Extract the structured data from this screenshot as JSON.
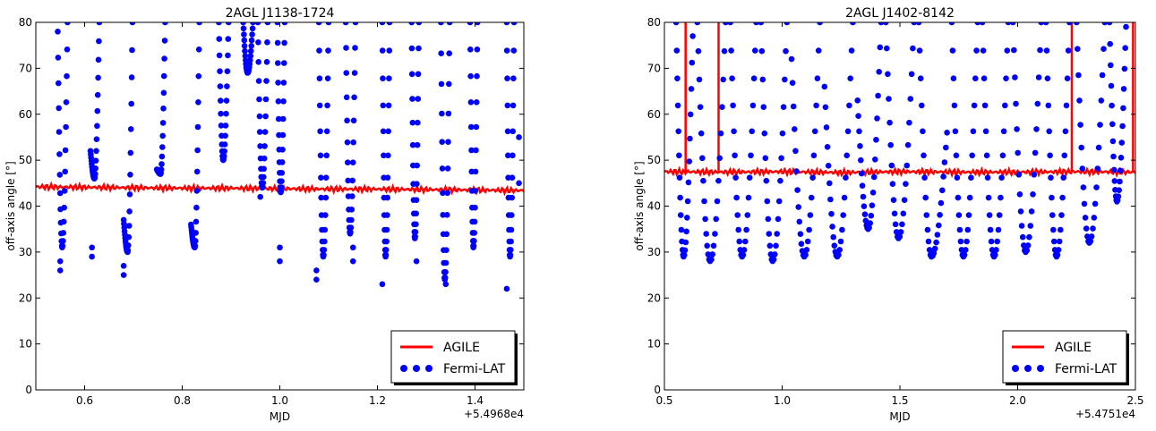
{
  "chart_data": [
    {
      "type": "line",
      "title": "2AGL J1138-1724",
      "xlabel": "MJD",
      "ylabel": "off-axis angle [°]",
      "x_offset_label": "+5.4968e4",
      "xlim": [
        0.5,
        1.5
      ],
      "ylim": [
        0,
        80
      ],
      "xticks": [
        0.6,
        0.8,
        1.0,
        1.2,
        1.4
      ],
      "xtick_labels": [
        "0.6",
        "0.8",
        "1.0",
        "1.2",
        "1.4"
      ],
      "yticks": [
        0,
        10,
        20,
        30,
        40,
        50,
        60,
        70,
        80
      ],
      "ytick_labels": [
        "0",
        "10",
        "20",
        "30",
        "40",
        "50",
        "60",
        "70",
        "80"
      ],
      "legend_position": "lower-right",
      "series": [
        {
          "name": "AGILE",
          "color": "#ff0000",
          "style": "line",
          "x": [
            0.5,
            0.6,
            0.7,
            0.8,
            0.9,
            1.0,
            1.1,
            1.2,
            1.3,
            1.4,
            1.5
          ],
          "y": [
            44.2,
            44.1,
            44.0,
            43.9,
            43.9,
            43.8,
            43.7,
            43.7,
            43.6,
            43.5,
            43.4
          ]
        },
        {
          "name": "Fermi-LAT",
          "color": "#0000ff",
          "style": "markers",
          "passes": [
            {
              "x_start": 0.545,
              "x_end": 0.565,
              "y_start": 78,
              "y_min": 31,
              "y_end": 80
            },
            {
              "x_start": 0.612,
              "x_end": 0.63,
              "y_start": 52,
              "y_min": 46,
              "y_end": 80
            },
            {
              "x_start": 0.68,
              "x_end": 0.698,
              "y_start": 37,
              "y_min": 30,
              "y_end": 80
            },
            {
              "x_start": 0.748,
              "x_end": 0.765,
              "y_start": 48,
              "y_min": 47,
              "y_end": 80
            },
            {
              "x_start": 0.818,
              "x_end": 0.835,
              "y_start": 36,
              "y_min": 31,
              "y_end": 80
            },
            {
              "x_start": 0.875,
              "x_end": 0.895,
              "y_start": 80,
              "y_min": 50,
              "y_end": 80
            },
            {
              "x_start": 0.925,
              "x_end": 0.945,
              "y_start": 80,
              "y_min": 69,
              "y_end": 80
            },
            {
              "x_start": 0.955,
              "x_end": 0.975,
              "y_start": 80,
              "y_min": 44,
              "y_end": 80
            },
            {
              "x_start": 0.995,
              "x_end": 1.01,
              "y_start": 80,
              "y_min": 43,
              "y_end": 80
            },
            {
              "x_start": 1.08,
              "x_end": 1.1,
              "y_start": 80,
              "y_min": 29,
              "y_end": 80
            },
            {
              "x_start": 1.135,
              "x_end": 1.155,
              "y_start": 80,
              "y_min": 34,
              "y_end": 80
            },
            {
              "x_start": 1.21,
              "x_end": 1.225,
              "y_start": 80,
              "y_min": 29,
              "y_end": 80
            },
            {
              "x_start": 1.27,
              "x_end": 1.285,
              "y_start": 80,
              "y_min": 33,
              "y_end": 80
            },
            {
              "x_start": 1.33,
              "x_end": 1.348,
              "y_start": 80,
              "y_min": 24,
              "y_end": 80
            },
            {
              "x_start": 1.39,
              "x_end": 1.405,
              "y_start": 80,
              "y_min": 31,
              "y_end": 80
            },
            {
              "x_start": 1.465,
              "x_end": 1.48,
              "y_start": 80,
              "y_min": 29,
              "y_end": 80
            }
          ],
          "scattered_points": [
            {
              "x": 0.55,
              "y": 26
            },
            {
              "x": 0.55,
              "y": 28
            },
            {
              "x": 0.615,
              "y": 29
            },
            {
              "x": 0.615,
              "y": 31
            },
            {
              "x": 0.68,
              "y": 25
            },
            {
              "x": 0.68,
              "y": 27
            },
            {
              "x": 0.96,
              "y": 42
            },
            {
              "x": 1.0,
              "y": 28
            },
            {
              "x": 1.0,
              "y": 31
            },
            {
              "x": 1.075,
              "y": 24
            },
            {
              "x": 1.075,
              "y": 26
            },
            {
              "x": 1.15,
              "y": 28
            },
            {
              "x": 1.15,
              "y": 31
            },
            {
              "x": 1.21,
              "y": 23
            },
            {
              "x": 1.28,
              "y": 28
            },
            {
              "x": 1.34,
              "y": 23
            },
            {
              "x": 1.465,
              "y": 22
            },
            {
              "x": 1.49,
              "y": 45
            },
            {
              "x": 1.49,
              "y": 55
            }
          ]
        }
      ]
    },
    {
      "type": "line",
      "title": "2AGL J1402-8142",
      "xlabel": "MJD",
      "ylabel": "off-axis angle [°]",
      "x_offset_label": "+5.4751e4",
      "xlim": [
        0.5,
        2.5
      ],
      "ylim": [
        0,
        80
      ],
      "xticks": [
        0.5,
        1.0,
        1.5,
        2.0,
        2.5
      ],
      "xtick_labels": [
        "0.5",
        "1.0",
        "1.5",
        "2.0",
        "2.5"
      ],
      "yticks": [
        0,
        10,
        20,
        30,
        40,
        50,
        60,
        70,
        80
      ],
      "ytick_labels": [
        "0",
        "10",
        "20",
        "30",
        "40",
        "50",
        "60",
        "70",
        "80"
      ],
      "legend_position": "lower-right",
      "series": [
        {
          "name": "AGILE",
          "color": "#ff0000",
          "style": "line",
          "x": [
            0.5,
            0.75,
            1.0,
            1.25,
            1.5,
            1.75,
            2.0,
            2.25,
            2.5
          ],
          "y": [
            47.5,
            47.4,
            47.5,
            47.3,
            47.5,
            47.4,
            47.4,
            47.5,
            47.4
          ],
          "spikes": [
            {
              "x": 0.59,
              "y": 80
            },
            {
              "x": 0.73,
              "y": 80
            },
            {
              "x": 2.23,
              "y": 80
            },
            {
              "x": 2.49,
              "y": 80
            }
          ]
        },
        {
          "name": "Fermi-LAT",
          "color": "#0000ff",
          "style": "markers",
          "passes": [
            {
              "x_start": 0.55,
              "x_end": 0.62,
              "y_start": 80,
              "y_min": 29,
              "y_end": 77
            },
            {
              "x_start": 0.64,
              "x_end": 0.76,
              "y_start": 80,
              "y_min": 28,
              "y_end": 80
            },
            {
              "x_start": 0.78,
              "x_end": 0.89,
              "y_start": 80,
              "y_min": 29,
              "y_end": 80
            },
            {
              "x_start": 0.91,
              "x_end": 1.02,
              "y_start": 80,
              "y_min": 28,
              "y_end": 80
            },
            {
              "x_start": 1.04,
              "x_end": 1.16,
              "y_start": 72,
              "y_min": 29,
              "y_end": 80
            },
            {
              "x_start": 1.18,
              "x_end": 1.3,
              "y_start": 66,
              "y_min": 29,
              "y_end": 80
            },
            {
              "x_start": 1.32,
              "x_end": 1.42,
              "y_start": 63,
              "y_min": 35,
              "y_end": 80
            },
            {
              "x_start": 1.44,
              "x_end": 1.56,
              "y_start": 80,
              "y_min": 33,
              "y_end": 80
            },
            {
              "x_start": 1.58,
              "x_end": 1.7,
              "y_start": 80,
              "y_min": 29,
              "y_end": 56
            },
            {
              "x_start": 1.72,
              "x_end": 1.83,
              "y_start": 80,
              "y_min": 29,
              "y_end": 80
            },
            {
              "x_start": 1.85,
              "x_end": 1.96,
              "y_start": 80,
              "y_min": 29,
              "y_end": 80
            },
            {
              "x_start": 1.98,
              "x_end": 2.1,
              "y_start": 80,
              "y_min": 30,
              "y_end": 80
            },
            {
              "x_start": 2.12,
              "x_end": 2.22,
              "y_start": 80,
              "y_min": 29,
              "y_end": 80
            },
            {
              "x_start": 2.25,
              "x_end": 2.37,
              "y_start": 80,
              "y_min": 32,
              "y_end": 80
            },
            {
              "x_start": 2.39,
              "x_end": 2.46,
              "y_start": 80,
              "y_min": 41,
              "y_end": 79
            }
          ]
        }
      ]
    }
  ]
}
